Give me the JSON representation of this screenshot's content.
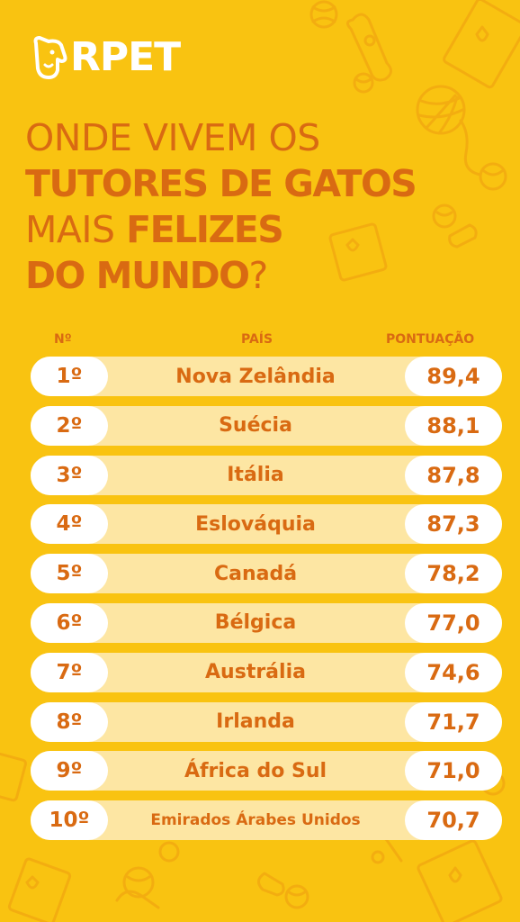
{
  "brand": {
    "logo_text": "RPET"
  },
  "headline": {
    "line1": "ONDE VIVEM OS",
    "line2": "TUTORES DE GATOS",
    "line3_light": "MAIS ",
    "line3_bold": "FELIZES",
    "line4_bold": "DO MUNDO",
    "line4_light": "?"
  },
  "table": {
    "headers": {
      "rank": "Nº",
      "country": "PAÍS",
      "score": "PONTUAÇÃO"
    },
    "rows": [
      {
        "rank": "1º",
        "country": "Nova Zelândia",
        "score": "89,4"
      },
      {
        "rank": "2º",
        "country": "Suécia",
        "score": "88,1"
      },
      {
        "rank": "3º",
        "country": "Itália",
        "score": "87,8"
      },
      {
        "rank": "4º",
        "country": "Eslováquia",
        "score": "87,3"
      },
      {
        "rank": "5º",
        "country": "Canadá",
        "score": "78,2"
      },
      {
        "rank": "6º",
        "country": "Bélgica",
        "score": "77,0"
      },
      {
        "rank": "7º",
        "country": "Austrália",
        "score": "74,6"
      },
      {
        "rank": "8º",
        "country": "Irlanda",
        "score": "71,7"
      },
      {
        "rank": "9º",
        "country": "África do Sul",
        "score": "71,0"
      },
      {
        "rank": "10º",
        "country": "Emirados Árabes Unidos",
        "score": "70,7"
      }
    ]
  },
  "colors": {
    "background": "#f9c311",
    "accent": "#d96a12",
    "row_fill": "#fde6a3",
    "pill": "#ffffff"
  }
}
